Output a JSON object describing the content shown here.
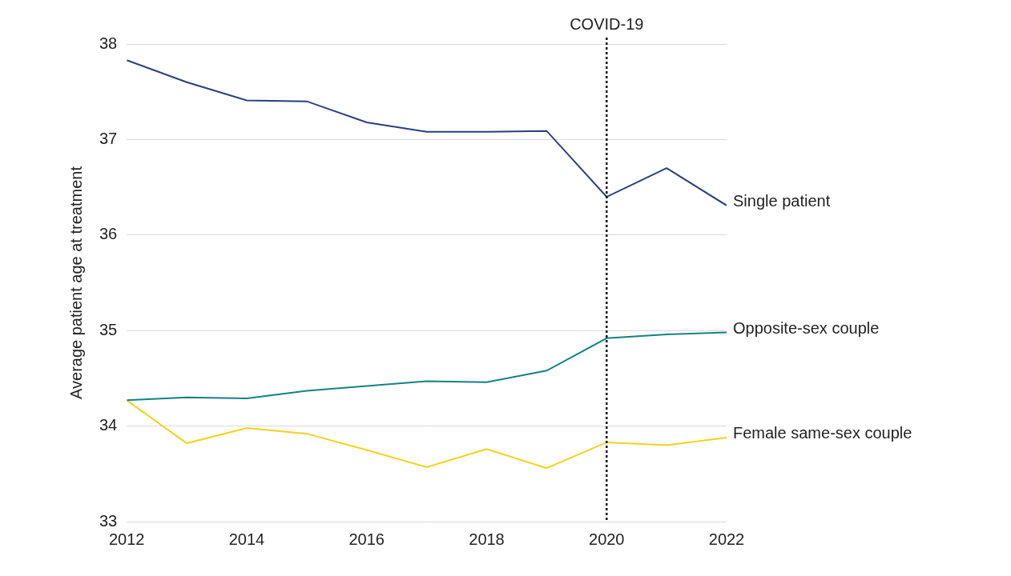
{
  "chart_data": {
    "type": "line",
    "y_label": "Average patient age at treatment",
    "x": [
      2012,
      2013,
      2014,
      2015,
      2016,
      2017,
      2018,
      2019,
      2020,
      2021,
      2022
    ],
    "series": [
      {
        "name": "Single patient",
        "color": "#2b3f7a",
        "values": [
          37.83,
          37.6,
          37.41,
          37.4,
          37.18,
          37.08,
          37.08,
          37.09,
          36.4,
          36.7,
          36.31
        ]
      },
      {
        "name": "Opposite-sex couple",
        "color": "#138383",
        "values": [
          34.27,
          34.3,
          34.29,
          34.37,
          34.42,
          34.47,
          34.46,
          34.58,
          34.92,
          34.96,
          34.98
        ]
      },
      {
        "name": "Female same-sex couple",
        "color": "#f2d31b",
        "values": [
          34.27,
          33.82,
          33.98,
          33.92,
          33.75,
          33.57,
          33.76,
          33.56,
          33.83,
          33.8,
          33.88
        ]
      }
    ],
    "xlim": [
      2012,
      2022
    ],
    "xticks": [
      2012,
      2014,
      2016,
      2018,
      2020,
      2022
    ],
    "ylim": [
      33,
      38
    ],
    "yticks": [
      33,
      34,
      35,
      36,
      37,
      38
    ],
    "grid": true,
    "annotations": [
      {
        "text": "COVID-19",
        "x": 2020
      }
    ]
  }
}
